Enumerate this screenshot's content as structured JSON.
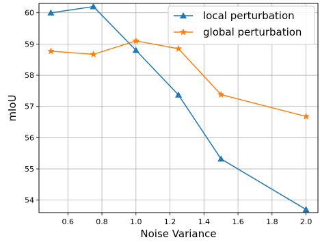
{
  "chart_data": {
    "type": "line",
    "title": "",
    "xlabel": "Noise Variance",
    "ylabel": "mIoU",
    "xlim": [
      0.43,
      2.07
    ],
    "ylim": [
      53.6,
      60.3
    ],
    "x_ticks": [
      "0.6",
      "0.8",
      "1.0",
      "1.2",
      "1.4",
      "1.6",
      "1.8",
      "2.0"
    ],
    "y_ticks": [
      "54",
      "55",
      "56",
      "57",
      "58",
      "59",
      "60"
    ],
    "grid": true,
    "legend_position": "top-right",
    "series": [
      {
        "name": "local perturbation",
        "color": "#1f77b4",
        "marker": "triangle",
        "x": [
          0.5,
          0.75,
          1.0,
          1.25,
          1.5,
          2.0
        ],
        "y": [
          60.0,
          60.2,
          58.8,
          57.37,
          55.32,
          53.7
        ]
      },
      {
        "name": "global perturbation",
        "color": "#ff7f0e",
        "marker": "star",
        "x": [
          0.5,
          0.75,
          1.0,
          1.25,
          1.5,
          2.0
        ],
        "y": [
          58.77,
          58.67,
          59.1,
          58.85,
          57.38,
          56.68
        ]
      }
    ]
  }
}
